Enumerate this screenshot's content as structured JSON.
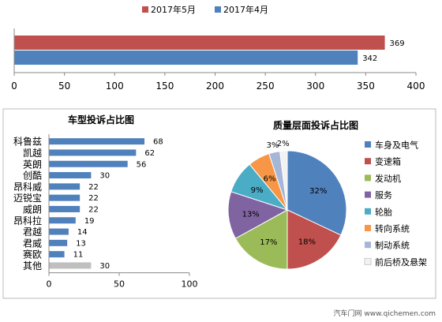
{
  "chart_data": [
    {
      "type": "bar",
      "orientation": "horizontal",
      "series": [
        {
          "name": "2017年5月",
          "color": "#c0504d",
          "values": [
            369
          ]
        },
        {
          "name": "2017年4月",
          "color": "#4f81bd",
          "values": [
            342
          ]
        }
      ],
      "xlim": [
        0,
        400
      ],
      "xticks": [
        "0",
        "50",
        "100",
        "150",
        "200",
        "250",
        "300",
        "350",
        "400"
      ],
      "legend": "top",
      "grid": false
    },
    {
      "type": "bar",
      "orientation": "horizontal",
      "title": "车型投诉占比图",
      "categories": [
        "科鲁兹",
        "凯越",
        "英朗",
        "创酷",
        "昂科威",
        "迈锐宝",
        "威朗",
        "昂科拉",
        "君越",
        "君威",
        "赛欧",
        "其他"
      ],
      "values": [
        68,
        62,
        56,
        30,
        22,
        22,
        22,
        19,
        14,
        13,
        11,
        30
      ],
      "colors": [
        "#4f81bd",
        "#4f81bd",
        "#4f81bd",
        "#4f81bd",
        "#4f81bd",
        "#4f81bd",
        "#4f81bd",
        "#4f81bd",
        "#4f81bd",
        "#4f81bd",
        "#4f81bd",
        "#bfbfbf"
      ],
      "xlim": [
        0,
        100
      ],
      "xticks": [
        "0",
        "50",
        "100"
      ],
      "grid": false
    },
    {
      "type": "pie",
      "title": "质量层面投诉占比图",
      "slices": [
        {
          "name": "车身及电气",
          "value": 32,
          "label": "32%",
          "color": "#4f81bd"
        },
        {
          "name": "变速箱",
          "value": 18,
          "label": "18%",
          "color": "#c0504d"
        },
        {
          "name": "发动机",
          "value": 17,
          "label": "17%",
          "color": "#9bbb59"
        },
        {
          "name": "服务",
          "value": 13,
          "label": "13%",
          "color": "#8064a2"
        },
        {
          "name": "轮胎",
          "value": 9,
          "label": "9%",
          "color": "#4bacc6"
        },
        {
          "name": "转向系统",
          "value": 6,
          "label": "6%",
          "color": "#f79646"
        },
        {
          "name": "制动系统",
          "value": 3,
          "label": "3%",
          "color": "#a6b6d6"
        },
        {
          "name": "前后桥及悬架",
          "value": 2,
          "label": "2%",
          "color": "#f2f2f2"
        }
      ],
      "legend": "right"
    }
  ],
  "watermark": {
    "text": "汽车门网 www.qichemen.com"
  }
}
